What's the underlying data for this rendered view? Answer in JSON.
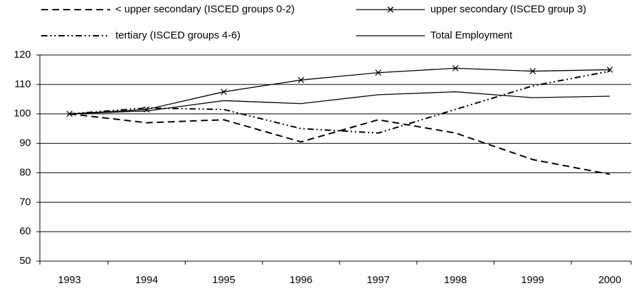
{
  "chart_data": {
    "type": "line",
    "categories": [
      "1993",
      "1994",
      "1995",
      "1996",
      "1997",
      "1998",
      "1999",
      "2000"
    ],
    "series": [
      {
        "name": "< upper secondary (ISCED groups 0-2)",
        "color": "#000000",
        "line_style": "dashed",
        "values": [
          100,
          97,
          98,
          90.5,
          98,
          93.5,
          84.5,
          79.5
        ]
      },
      {
        "name": "upper secondary (ISCED group 3)",
        "color": "#000000",
        "line_style": "solid",
        "marker": "x",
        "values": [
          100,
          101.5,
          107.5,
          111.5,
          114,
          115.5,
          114.5,
          115
        ]
      },
      {
        "name": "tertiary (ISCED groups 4-6)",
        "color": "#000000",
        "line_style": "dash-dot-dot",
        "values": [
          100,
          102,
          101.5,
          95,
          93.5,
          101.5,
          109.5,
          114.5
        ]
      },
      {
        "name": "Total Employment",
        "color": "#000000",
        "line_style": "solid",
        "values": [
          100,
          101,
          104.5,
          103.5,
          106.5,
          107.5,
          105.5,
          106
        ]
      }
    ],
    "ylim": [
      50,
      120
    ],
    "yticks": [
      50,
      60,
      70,
      80,
      90,
      100,
      110,
      120
    ],
    "grid": true
  }
}
